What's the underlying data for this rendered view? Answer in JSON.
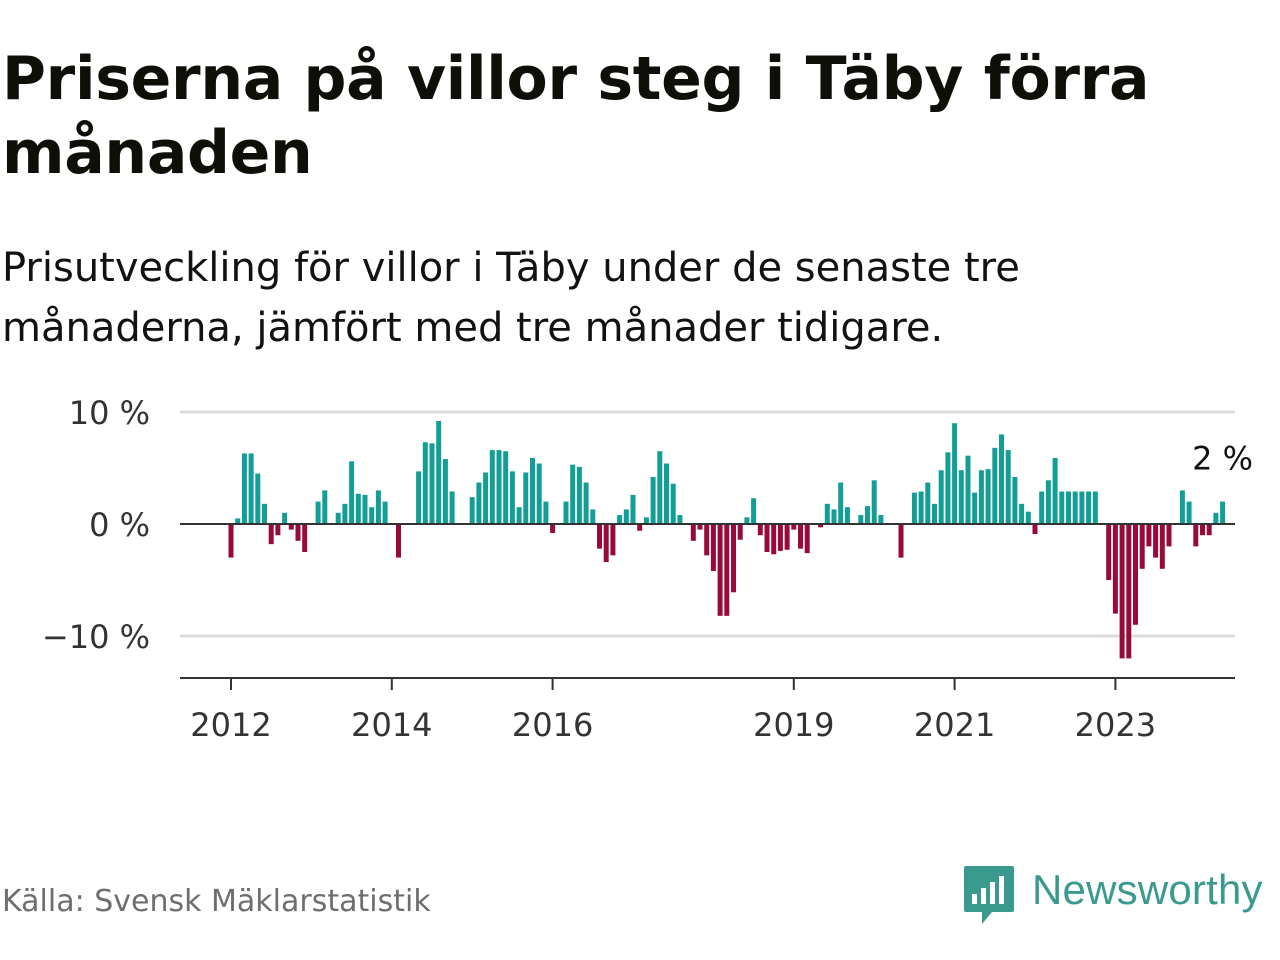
{
  "title": "Priserna på villor steg i Täby förra månaden",
  "subtitle": "Prisutveckling för villor i Täby under de senaste tre månaderna, jämfört med tre månader tidigare.",
  "source": "Källa: Svensk Mäklarstatistik",
  "logo": {
    "text": "Newsworthy",
    "icon": "newsworthy-logo-icon"
  },
  "colors": {
    "positive": "#129e96",
    "negative": "#990a3c",
    "grid": "#dcdcdc",
    "axis": "#333333",
    "brand": "#3a9a8d"
  },
  "chart_data": {
    "type": "bar",
    "title": "Priserna på villor steg i Täby förra månaden",
    "xlabel": "",
    "ylabel": "",
    "ylim": [
      -13.5,
      10
    ],
    "y_ticks": [
      10,
      0,
      -10
    ],
    "y_tick_labels": [
      "10 %",
      "0 %",
      "−10 %"
    ],
    "x_tick_labels": [
      "2012",
      "2014",
      "2016",
      "2019",
      "2021",
      "2023"
    ],
    "grid": true,
    "end_label": "2 %",
    "start": "2012-01",
    "values": [
      -3,
      0.5,
      6.3,
      6.3,
      4.5,
      1.8,
      -1.8,
      -1,
      1,
      -0.5,
      -1.5,
      -2.5,
      0,
      2,
      3,
      0,
      1,
      1.8,
      5.6,
      2.7,
      2.6,
      1.5,
      3,
      2,
      0,
      -3,
      0,
      0,
      4.7,
      7.3,
      7.2,
      9.2,
      5.8,
      2.9,
      0,
      0,
      2.4,
      3.7,
      4.6,
      6.6,
      6.6,
      6.5,
      4.7,
      1.5,
      4.6,
      5.9,
      5.4,
      2,
      -0.8,
      0,
      2,
      5.3,
      5.1,
      3.7,
      1.3,
      -2.2,
      -3.4,
      -2.8,
      0.8,
      1.3,
      2.6,
      -0.6,
      0.6,
      4.2,
      6.5,
      5.4,
      3.6,
      0.8,
      0,
      -1.5,
      -0.5,
      -2.8,
      -4.2,
      -8.2,
      -8.2,
      -6.1,
      -1.4,
      0.6,
      2.3,
      -1,
      -2.5,
      -2.7,
      -2.4,
      -2.3,
      -0.5,
      -2.2,
      -2.6,
      0,
      -0.3,
      1.8,
      1.3,
      3.7,
      1.5,
      0,
      0.8,
      1.6,
      3.9,
      0.8,
      0,
      0,
      -3,
      0,
      2.8,
      2.9,
      3.7,
      1.8,
      4.8,
      6.4,
      9,
      4.8,
      6.1,
      2.8,
      4.8,
      4.9,
      6.8,
      8,
      6.6,
      4.2,
      1.8,
      1.1,
      -0.9,
      2.9,
      3.9,
      5.9,
      2.9,
      2.9,
      2.9,
      2.9,
      2.9,
      2.9,
      0,
      -5,
      -8,
      -12,
      -12,
      -9,
      -4,
      -2,
      -3,
      -4,
      -2,
      0,
      3,
      2,
      -2,
      -1,
      -1,
      1,
      2
    ]
  }
}
